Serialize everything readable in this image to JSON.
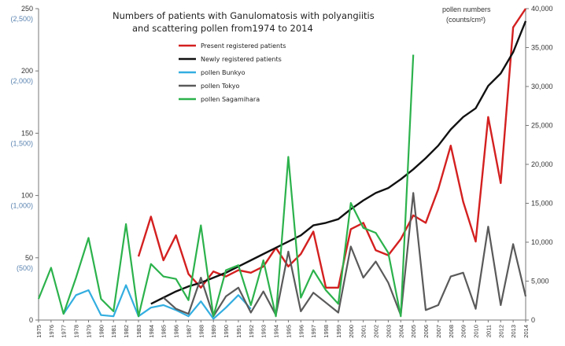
{
  "chart_data": {
    "type": "line",
    "title_line1": "Numbers of patients with Ganulomatosis with polyangiitis",
    "title_line2": "and scattering pollen from1974 to 2014",
    "right_axis_label_line1": "pollen numbers",
    "right_axis_label_line2": "(counts/cm²)",
    "x": [
      1975,
      1976,
      1977,
      1978,
      1979,
      1980,
      1981,
      1982,
      1983,
      1984,
      1985,
      1986,
      1987,
      1988,
      1989,
      1990,
      1991,
      1992,
      1993,
      1994,
      1995,
      1996,
      1997,
      1998,
      1999,
      2000,
      2001,
      2002,
      2003,
      2004,
      2005,
      2006,
      2007,
      2008,
      2009,
      2010,
      2011,
      2012,
      2013,
      2014
    ],
    "x_labels": [
      "1975",
      "1976",
      "1977",
      "1978",
      "1979",
      "1980",
      "1981",
      "1982",
      "1983",
      "1984",
      "1985",
      "1986",
      "1987",
      "1988",
      "1989",
      "1990",
      "1991",
      "1992",
      "1993",
      "1994",
      "1995",
      "1996",
      "1997",
      "1998",
      "1999",
      "2000",
      "2001",
      "2002",
      "2003",
      "2004",
      "2005",
      "2006",
      "2007",
      "2008",
      "2009",
      "2010",
      "2011",
      "2012",
      "2013",
      "2014"
    ],
    "y_left": {
      "ylim": [
        0,
        250
      ],
      "ticks": [
        0,
        50,
        100,
        150,
        200,
        250
      ],
      "tick_labels": [
        "0",
        "50",
        "100",
        "150",
        "200",
        "250"
      ]
    },
    "y_left_secondary": {
      "ticks": [
        50,
        100,
        150,
        200,
        250
      ],
      "tick_labels": [
        "(500)",
        "(1,000)",
        "(1,500)",
        "(2,000)",
        "(2,500)"
      ],
      "color": "#5b84b1"
    },
    "y_right": {
      "ylim": [
        0,
        40000
      ],
      "ticks": [
        0,
        5000,
        10000,
        15000,
        20000,
        25000,
        30000,
        35000,
        40000
      ],
      "tick_labels": [
        "0",
        "5,000",
        "10,000",
        "15,000",
        "20,000",
        "25,000",
        "30,000",
        "35,000",
        "40,000"
      ]
    },
    "series": [
      {
        "name": "Present registered patients",
        "color": "#d42020",
        "axis": "left",
        "values": [
          null,
          null,
          null,
          null,
          null,
          null,
          null,
          null,
          51,
          83,
          48,
          68,
          37,
          26,
          39,
          35,
          40,
          38,
          43,
          58,
          43,
          53,
          71,
          26,
          26,
          73,
          78,
          56,
          52,
          65,
          84,
          78,
          105,
          140,
          95,
          63,
          163,
          110,
          235,
          250
        ]
      },
      {
        "name": "Newly registered patients",
        "color": "#111111",
        "axis": "left",
        "values": [
          null,
          null,
          null,
          null,
          null,
          null,
          null,
          null,
          null,
          13,
          18,
          23,
          27,
          30,
          34,
          38,
          43,
          48,
          53,
          58,
          63,
          68,
          76,
          78,
          81,
          89,
          96,
          102,
          106,
          113,
          121,
          130,
          140,
          153,
          163,
          170,
          188,
          198,
          215,
          240
        ]
      },
      {
        "name": "pollen Bunkyo",
        "color": "#33aee0",
        "axis": "left",
        "values": [
          null,
          null,
          5,
          20,
          24,
          4,
          3,
          28,
          3,
          10,
          12,
          8,
          3,
          15,
          1,
          10,
          20,
          9,
          null,
          null,
          null,
          null,
          null,
          null,
          null,
          null,
          null,
          null,
          null,
          null,
          null,
          null,
          null,
          null,
          null,
          null,
          null,
          null,
          null,
          null
        ]
      },
      {
        "name": "pollen Tokyo",
        "color": "#5a5a5a",
        "axis": "left",
        "values": [
          null,
          null,
          null,
          null,
          null,
          null,
          null,
          null,
          null,
          null,
          18,
          9,
          5,
          34,
          3,
          19,
          26,
          6,
          23,
          4,
          55,
          7,
          22,
          14,
          6,
          59,
          34,
          47,
          30,
          4,
          102,
          8,
          12,
          35,
          38,
          9,
          75,
          12,
          61,
          19
        ]
      },
      {
        "name": "pollen Sagamihara",
        "color": "#2cb24c",
        "axis": "left",
        "values": [
          17,
          42,
          5,
          34,
          66,
          17,
          7,
          77,
          3,
          45,
          35,
          33,
          16,
          76,
          3,
          40,
          44,
          12,
          48,
          3,
          131,
          18,
          40,
          24,
          13,
          94,
          74,
          70,
          54,
          3,
          213,
          null,
          null,
          null,
          null,
          null,
          null,
          null,
          null,
          null
        ]
      }
    ]
  }
}
